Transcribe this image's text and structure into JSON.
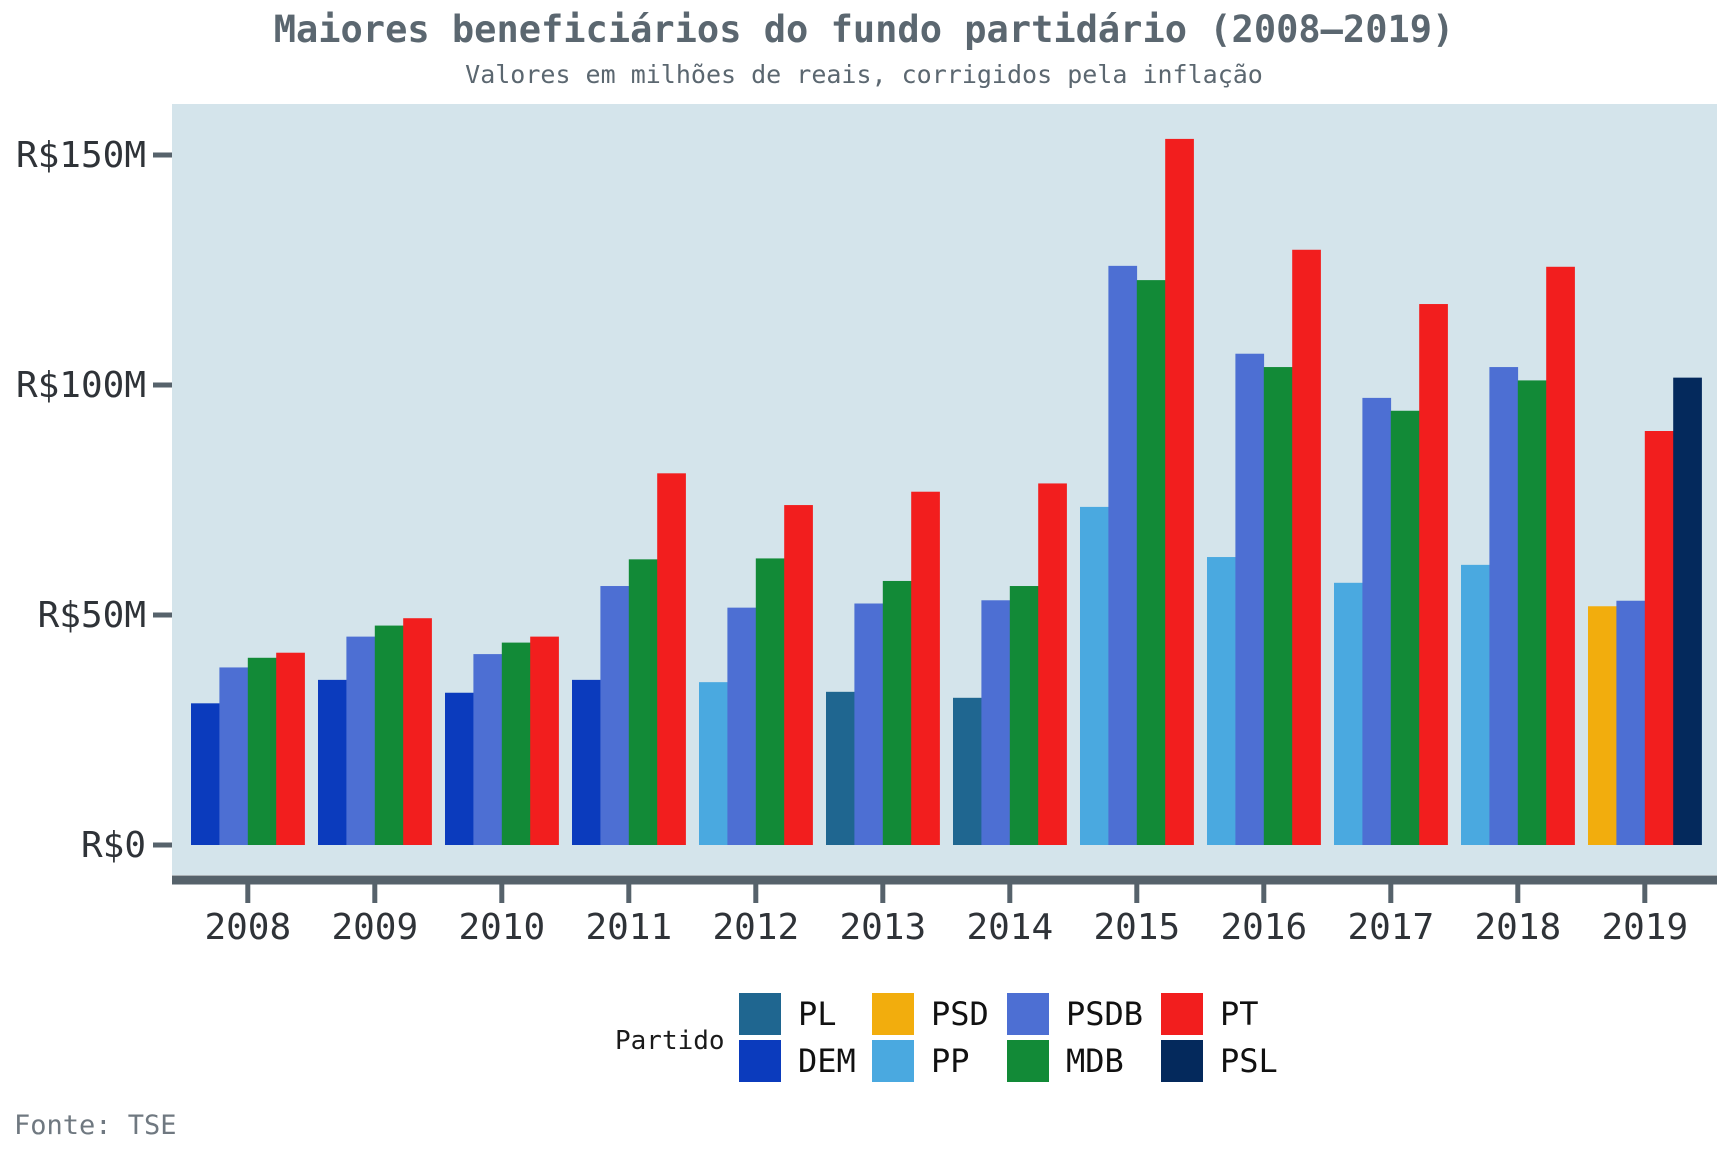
{
  "chart_data": {
    "type": "bar",
    "title": "Maiores beneficiários do fundo partidário (2008–2019)",
    "subtitle": "Valores em milhões de reais, corrigidos pela inflação",
    "caption": "Fonte: TSE",
    "ylabel": "",
    "xlabel": "",
    "ylim": [
      0,
      160
    ],
    "yticks": [
      {
        "value": 0,
        "label": "R$0"
      },
      {
        "value": 50,
        "label": "R$50M"
      },
      {
        "value": 100,
        "label": "R$100M"
      },
      {
        "value": 150,
        "label": "R$150M"
      }
    ],
    "grid": false,
    "panel_color": "#d4e4eb",
    "axis_color": "#56626b",
    "legend": {
      "title": "Partido",
      "placement": "bottom",
      "entries": [
        {
          "name": "PL",
          "color": "#1f6690"
        },
        {
          "name": "DEM",
          "color": "#0b3bbd"
        },
        {
          "name": "PSD",
          "color": "#f2ad0d"
        },
        {
          "name": "PP",
          "color": "#4aa9e0"
        },
        {
          "name": "PSDB",
          "color": "#4d6fd3"
        },
        {
          "name": "MDB",
          "color": "#128a37"
        },
        {
          "name": "PT",
          "color": "#f21e1e"
        },
        {
          "name": "PSL",
          "color": "#04295c"
        }
      ]
    },
    "groups": [
      {
        "year": "2008",
        "bars": [
          {
            "party": "DEM",
            "value": 30.8
          },
          {
            "party": "PSDB",
            "value": 38.6
          },
          {
            "party": "MDB",
            "value": 40.7
          },
          {
            "party": "PT",
            "value": 41.8
          }
        ]
      },
      {
        "year": "2009",
        "bars": [
          {
            "party": "DEM",
            "value": 35.9
          },
          {
            "party": "PSDB",
            "value": 45.3
          },
          {
            "party": "MDB",
            "value": 47.7
          },
          {
            "party": "PT",
            "value": 49.3
          }
        ]
      },
      {
        "year": "2010",
        "bars": [
          {
            "party": "DEM",
            "value": 33.1
          },
          {
            "party": "PSDB",
            "value": 41.5
          },
          {
            "party": "MDB",
            "value": 44.0
          },
          {
            "party": "PT",
            "value": 45.3
          }
        ]
      },
      {
        "year": "2011",
        "bars": [
          {
            "party": "DEM",
            "value": 35.9
          },
          {
            "party": "PSDB",
            "value": 56.3
          },
          {
            "party": "MDB",
            "value": 62.1
          },
          {
            "party": "PT",
            "value": 80.8
          }
        ]
      },
      {
        "year": "2012",
        "bars": [
          {
            "party": "PP",
            "value": 35.4
          },
          {
            "party": "PSDB",
            "value": 51.6
          },
          {
            "party": "MDB",
            "value": 62.3
          },
          {
            "party": "PT",
            "value": 73.9
          }
        ]
      },
      {
        "year": "2013",
        "bars": [
          {
            "party": "PL",
            "value": 33.3
          },
          {
            "party": "PSDB",
            "value": 52.5
          },
          {
            "party": "MDB",
            "value": 57.4
          },
          {
            "party": "PT",
            "value": 76.8
          }
        ]
      },
      {
        "year": "2014",
        "bars": [
          {
            "party": "PL",
            "value": 32.0
          },
          {
            "party": "PSDB",
            "value": 53.2
          },
          {
            "party": "MDB",
            "value": 56.3
          },
          {
            "party": "PT",
            "value": 78.6
          }
        ]
      },
      {
        "year": "2015",
        "bars": [
          {
            "party": "PP",
            "value": 73.5
          },
          {
            "party": "PSDB",
            "value": 125.9
          },
          {
            "party": "MDB",
            "value": 122.8
          },
          {
            "party": "PT",
            "value": 153.5
          }
        ]
      },
      {
        "year": "2016",
        "bars": [
          {
            "party": "PP",
            "value": 62.6
          },
          {
            "party": "PSDB",
            "value": 106.8
          },
          {
            "party": "MDB",
            "value": 103.9
          },
          {
            "party": "PT",
            "value": 129.4
          }
        ]
      },
      {
        "year": "2017",
        "bars": [
          {
            "party": "PP",
            "value": 57.0
          },
          {
            "party": "PSDB",
            "value": 97.2
          },
          {
            "party": "MDB",
            "value": 94.4
          },
          {
            "party": "PT",
            "value": 117.6
          }
        ]
      },
      {
        "year": "2018",
        "bars": [
          {
            "party": "PP",
            "value": 60.9
          },
          {
            "party": "PSDB",
            "value": 103.9
          },
          {
            "party": "MDB",
            "value": 101.0
          },
          {
            "party": "PT",
            "value": 125.7
          }
        ]
      },
      {
        "year": "2019",
        "bars": [
          {
            "party": "PSD",
            "value": 51.9
          },
          {
            "party": "PSDB",
            "value": 53.1
          },
          {
            "party": "PT",
            "value": 90.0
          },
          {
            "party": "PSL",
            "value": 101.6
          }
        ]
      }
    ]
  }
}
